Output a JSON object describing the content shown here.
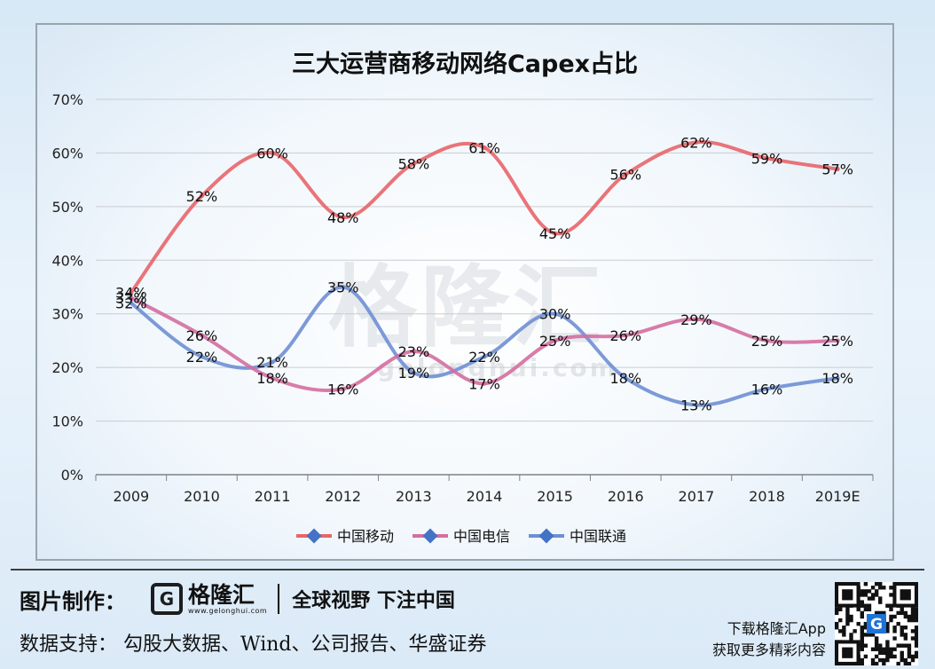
{
  "chart_data": {
    "type": "line",
    "title": "三大运营商移动网络Capex占比",
    "categories": [
      "2009",
      "2010",
      "2011",
      "2012",
      "2013",
      "2014",
      "2015",
      "2016",
      "2017",
      "2018",
      "2019E"
    ],
    "yticks": [
      "0%",
      "10%",
      "20%",
      "30%",
      "40%",
      "50%",
      "60%",
      "70%"
    ],
    "ylim": [
      0,
      70
    ],
    "grid": true,
    "legend": "bottom",
    "series": [
      {
        "name": "中国移动",
        "color": "#e8656a",
        "values": [
          34,
          52,
          60,
          48,
          58,
          61,
          45,
          56,
          62,
          59,
          57
        ],
        "labels": [
          "34%",
          "52%",
          "60%",
          "48%",
          "58%",
          "61%",
          "45%",
          "56%",
          "62%",
          "59%",
          "57%"
        ]
      },
      {
        "name": "中国电信",
        "color": "#d46ea0",
        "values": [
          33,
          26,
          18,
          16,
          23,
          17,
          25,
          26,
          29,
          25,
          25
        ],
        "labels": [
          "33%",
          "26%",
          "18%",
          "16%",
          "23%",
          "17%",
          "25%",
          "26%",
          "29%",
          "25%",
          "25%"
        ]
      },
      {
        "name": "中国联通",
        "color": "#6f8fd4",
        "values": [
          32,
          22,
          21,
          35,
          19,
          22,
          30,
          18,
          13,
          16,
          18
        ],
        "labels": [
          "32%",
          "22%",
          "21%",
          "35%",
          "19%",
          "22%",
          "30%",
          "18%",
          "13%",
          "16%",
          "18%"
        ]
      }
    ]
  },
  "watermark": {
    "main": "格隆汇",
    "sub": "gelonghui.com"
  },
  "footer": {
    "credit_label": "图片制作：",
    "brand_name": "格隆汇",
    "brand_url": "www.gelonghui.com",
    "slogan": "全球视野 下注中国",
    "sources": "数据支持： 勾股大数据、Wind、公司报告、华盛证券",
    "app_line1": "下载格隆汇App",
    "app_line2": "获取更多精彩内容",
    "qr_badge": "G"
  }
}
